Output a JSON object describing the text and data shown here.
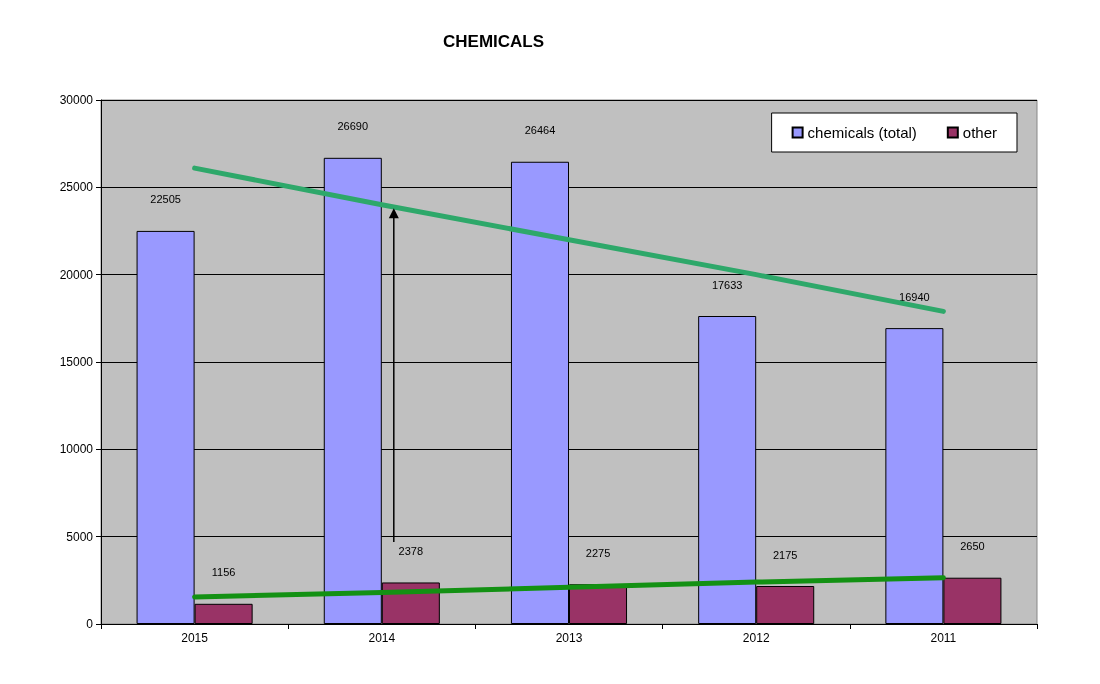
{
  "chart_data": {
    "type": "bar",
    "title": "CHEMICALS",
    "categories": [
      "2015",
      "2014",
      "2013",
      "2012",
      "2011"
    ],
    "series": [
      {
        "name": "chemicals (total)",
        "color": "#9999ff",
        "values": [
          22505,
          26690,
          26464,
          17633,
          16940
        ],
        "value_labels": [
          "22505",
          "26690",
          "26464",
          "17633",
          "16940"
        ]
      },
      {
        "name": "other",
        "color": "#993366",
        "values": [
          1156,
          2378,
          2275,
          2175,
          2650
        ],
        "value_labels": [
          "1156",
          "2378",
          "2275",
          "2175",
          "2650"
        ]
      },
      {
        "type": "line",
        "color": "#2ea86a",
        "values": [
          26100,
          24000,
          22000,
          20000,
          17900
        ]
      },
      {
        "type": "line",
        "color": "#139113",
        "values": [
          1550,
          1800,
          2100,
          2400,
          2650
        ]
      }
    ],
    "ylim": [
      0,
      30000
    ],
    "yticks": [
      0,
      5000,
      10000,
      15000,
      20000,
      25000,
      30000
    ],
    "grid": "y",
    "legend": "top right"
  }
}
